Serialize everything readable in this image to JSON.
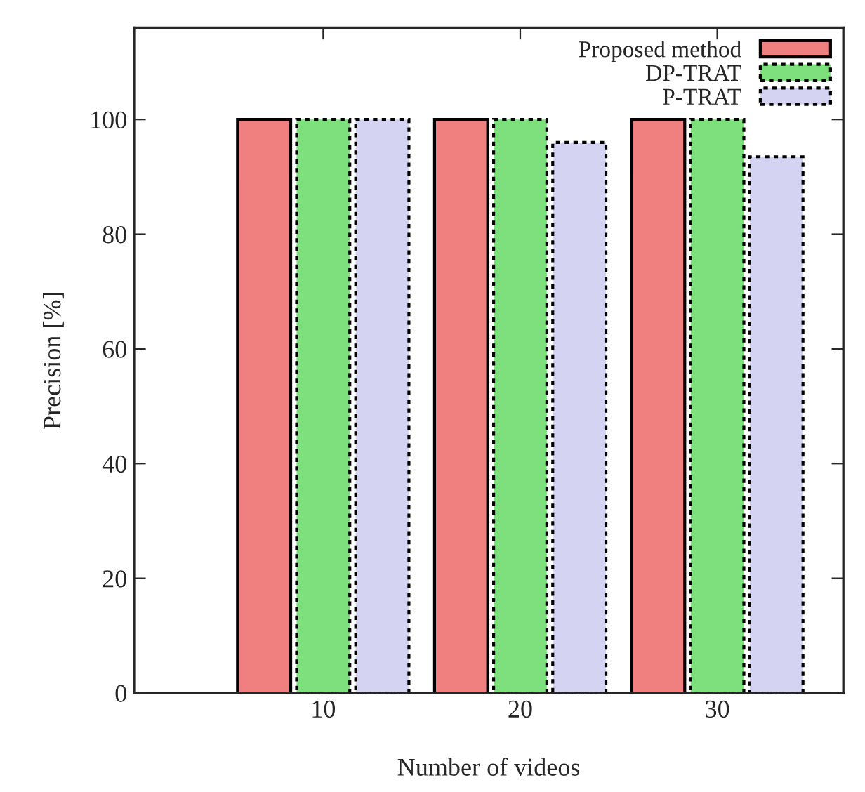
{
  "chart_data": {
    "type": "bar",
    "xlabel": "Number of videos",
    "ylabel": "Precision [%]",
    "categories": [
      "10",
      "20",
      "30"
    ],
    "series": [
      {
        "name": "Proposed method",
        "color": "#f07f7f",
        "values": [
          100,
          100,
          100
        ],
        "line_style": "solid"
      },
      {
        "name": "DP-TRAT",
        "color": "#7de07d",
        "values": [
          100,
          100,
          100
        ],
        "line_style": "dotted"
      },
      {
        "name": "P-TRAT",
        "color": "#d4d4f2",
        "values": [
          100,
          96,
          93.5
        ],
        "line_style": "dotted"
      }
    ],
    "ylim": [
      0,
      116
    ],
    "yticks": [
      0,
      20,
      40,
      60,
      80,
      100
    ],
    "grid": false,
    "legend": "top right"
  }
}
